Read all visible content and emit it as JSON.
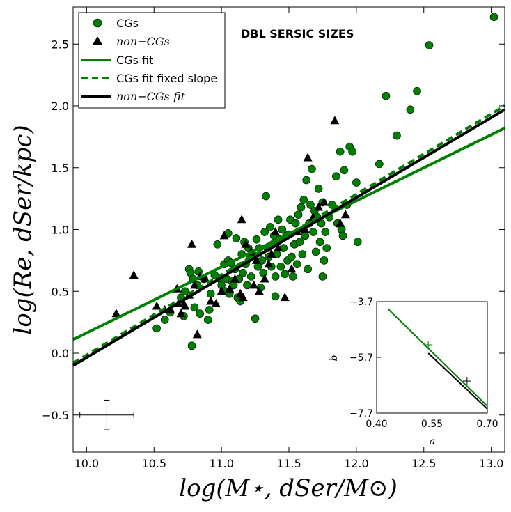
{
  "chart_data": {
    "type": "scatter",
    "title": "DBL SERSIC  SIZES",
    "xlabel": "log(M⋆, dSer/M⊙)",
    "ylabel": "log(Re, dSer/kpc)",
    "xlim": [
      9.9,
      13.1
    ],
    "ylim": [
      -0.8,
      2.8
    ],
    "xticks": [
      10.0,
      10.5,
      11.0,
      11.5,
      12.0,
      12.5,
      13.0
    ],
    "xtick_labels": [
      "10.0",
      "10.5",
      "11.0",
      "11.5",
      "12.0",
      "12.5",
      "13.0"
    ],
    "yticks": [
      -0.5,
      0.0,
      0.5,
      1.0,
      1.5,
      2.0,
      2.5
    ],
    "ytick_labels": [
      "−0.5",
      "0.0",
      "0.5",
      "1.0",
      "1.5",
      "2.0",
      "2.5"
    ],
    "legend_position": "top-left",
    "colors": {
      "cgs": "#008000",
      "noncgs": "#000000"
    },
    "legend": [
      {
        "label": "CGs",
        "marker": "circle",
        "color": "#008000"
      },
      {
        "label": "non−CGs",
        "marker": "triangle",
        "color": "#000000",
        "italic_part": "non"
      },
      {
        "label": "CGs fit",
        "line": "solid",
        "color": "#008000"
      },
      {
        "label": "CGs fit fixed slope",
        "line": "dashed",
        "color": "#008000"
      },
      {
        "label": "non−CGs fit",
        "line": "solid",
        "color": "#000000",
        "italic_part": "non"
      }
    ],
    "series": [
      {
        "name": "CGs",
        "marker": "circle",
        "points": [
          [
            10.52,
            0.2
          ],
          [
            10.58,
            0.27
          ],
          [
            10.62,
            0.33
          ],
          [
            10.7,
            0.45
          ],
          [
            10.72,
            0.3
          ],
          [
            10.73,
            0.5
          ],
          [
            10.76,
            0.68
          ],
          [
            10.77,
            0.65
          ],
          [
            10.78,
            0.06
          ],
          [
            10.79,
            0.6
          ],
          [
            10.8,
            0.37
          ],
          [
            10.82,
            0.55
          ],
          [
            10.83,
            0.66
          ],
          [
            10.84,
            0.32
          ],
          [
            10.87,
            0.6
          ],
          [
            10.9,
            0.27
          ],
          [
            10.91,
            0.35
          ],
          [
            10.92,
            0.48
          ],
          [
            10.95,
            0.63
          ],
          [
            10.97,
            0.88
          ],
          [
            10.99,
            0.6
          ],
          [
            11.0,
            0.55
          ],
          [
            11.02,
            0.72
          ],
          [
            11.03,
            0.5
          ],
          [
            11.04,
            0.6
          ],
          [
            11.05,
            0.75
          ],
          [
            11.05,
            0.97
          ],
          [
            11.06,
            0.48
          ],
          [
            11.07,
            0.73
          ],
          [
            11.08,
            0.58
          ],
          [
            11.09,
            0.55
          ],
          [
            11.1,
            0.68
          ],
          [
            11.11,
            0.93
          ],
          [
            11.12,
            0.45
          ],
          [
            11.13,
            0.6
          ],
          [
            11.14,
            0.42
          ],
          [
            11.15,
            0.8
          ],
          [
            11.16,
            0.65
          ],
          [
            11.17,
            0.9
          ],
          [
            11.18,
            0.72
          ],
          [
            11.19,
            0.55
          ],
          [
            11.2,
            0.85
          ],
          [
            11.21,
            0.78
          ],
          [
            11.22,
            0.62
          ],
          [
            11.23,
            0.8
          ],
          [
            11.25,
            0.28
          ],
          [
            11.26,
            0.92
          ],
          [
            11.27,
            0.7
          ],
          [
            11.28,
            0.85
          ],
          [
            11.29,
            0.53
          ],
          [
            11.3,
            0.75
          ],
          [
            11.31,
            0.65
          ],
          [
            11.32,
            0.98
          ],
          [
            11.33,
            1.27
          ],
          [
            11.34,
            0.85
          ],
          [
            11.35,
            0.78
          ],
          [
            11.36,
            1.02
          ],
          [
            11.37,
            0.7
          ],
          [
            11.38,
            0.88
          ],
          [
            11.39,
            0.95
          ],
          [
            11.4,
            0.62
          ],
          [
            11.4,
            0.46
          ],
          [
            11.41,
            0.8
          ],
          [
            11.42,
            1.08
          ],
          [
            11.43,
            0.92
          ],
          [
            11.44,
            0.7
          ],
          [
            11.45,
            1.0
          ],
          [
            11.46,
            0.85
          ],
          [
            11.47,
            0.64
          ],
          [
            11.48,
            0.95
          ],
          [
            11.49,
            0.75
          ],
          [
            11.5,
            0.96
          ],
          [
            11.51,
            1.08
          ],
          [
            11.52,
            0.78
          ],
          [
            11.53,
            0.62
          ],
          [
            11.54,
            0.88
          ],
          [
            11.55,
            1.05
          ],
          [
            11.56,
            0.72
          ],
          [
            11.57,
            1.12
          ],
          [
            11.58,
            0.9
          ],
          [
            11.59,
            1.18
          ],
          [
            11.6,
            0.8
          ],
          [
            11.61,
            1.24
          ],
          [
            11.62,
            0.95
          ],
          [
            11.63,
            1.4
          ],
          [
            11.64,
            0.68
          ],
          [
            11.65,
            1.05
          ],
          [
            11.66,
            1.2
          ],
          [
            11.67,
            1.49
          ],
          [
            11.68,
            0.98
          ],
          [
            11.69,
            1.15
          ],
          [
            11.7,
            0.82
          ],
          [
            11.71,
            1.1
          ],
          [
            11.72,
            1.33
          ],
          [
            11.73,
            0.9
          ],
          [
            11.74,
            1.05
          ],
          [
            11.75,
            0.62
          ],
          [
            11.75,
            1.22
          ],
          [
            11.76,
            0.75
          ],
          [
            11.77,
            0.98
          ],
          [
            11.78,
            0.85
          ],
          [
            11.8,
            1.1
          ],
          [
            11.82,
            1.2
          ],
          [
            11.85,
            1.43
          ],
          [
            11.86,
            1.05
          ],
          [
            11.88,
            1.63
          ],
          [
            11.89,
            1.0
          ],
          [
            11.9,
            0.95
          ],
          [
            11.91,
            1.48
          ],
          [
            11.93,
            1.2
          ],
          [
            11.95,
            1.67
          ],
          [
            11.97,
            1.63
          ],
          [
            12.0,
            1.38
          ],
          [
            12.01,
            0.9
          ],
          [
            12.17,
            1.53
          ],
          [
            12.22,
            2.08
          ],
          [
            12.3,
            1.76
          ],
          [
            12.4,
            1.97
          ],
          [
            12.45,
            2.12
          ],
          [
            12.54,
            2.49
          ],
          [
            13.02,
            2.72
          ]
        ]
      },
      {
        "name": "non−CGs",
        "marker": "triangle",
        "points": [
          [
            10.22,
            0.32
          ],
          [
            10.35,
            0.63
          ],
          [
            10.52,
            0.38
          ],
          [
            10.58,
            0.35
          ],
          [
            10.62,
            0.35
          ],
          [
            10.67,
            0.52
          ],
          [
            10.68,
            0.4
          ],
          [
            10.7,
            0.32
          ],
          [
            10.72,
            0.4
          ],
          [
            10.73,
            0.38
          ],
          [
            10.76,
            0.47
          ],
          [
            10.78,
            0.88
          ],
          [
            10.8,
            0.55
          ],
          [
            10.82,
            0.15
          ],
          [
            10.84,
            0.62
          ],
          [
            10.88,
            0.6
          ],
          [
            10.92,
            0.42
          ],
          [
            10.96,
            0.4
          ],
          [
            11.0,
            0.5
          ],
          [
            11.02,
            0.95
          ],
          [
            11.06,
            0.52
          ],
          [
            11.1,
            0.6
          ],
          [
            11.14,
            0.48
          ],
          [
            11.15,
            1.08
          ],
          [
            11.16,
            0.45
          ],
          [
            11.18,
            0.88
          ],
          [
            11.22,
            0.82
          ],
          [
            11.24,
            0.55
          ],
          [
            11.26,
            0.75
          ],
          [
            11.28,
            0.5
          ],
          [
            11.32,
            0.6
          ],
          [
            11.35,
            0.72
          ],
          [
            11.37,
            0.8
          ],
          [
            11.4,
            0.98
          ],
          [
            11.42,
            0.85
          ],
          [
            11.47,
            0.45
          ],
          [
            11.52,
            0.68
          ],
          [
            11.56,
            0.98
          ],
          [
            11.62,
            1.0
          ],
          [
            11.64,
            1.58
          ],
          [
            11.68,
            1.1
          ],
          [
            11.72,
            1.18
          ],
          [
            11.76,
            1.22
          ],
          [
            11.84,
            1.88
          ],
          [
            11.88,
            1.05
          ],
          [
            11.92,
            1.12
          ]
        ]
      }
    ],
    "fits": [
      {
        "name": "CGs fit",
        "style": "solid",
        "color": "#008000",
        "x": [
          9.9,
          13.1
        ],
        "y": [
          0.11,
          1.82
        ]
      },
      {
        "name": "CGs fit fixed slope",
        "style": "dashed",
        "color": "#008000",
        "x": [
          9.9,
          13.1
        ],
        "y": [
          -0.08,
          2.0
        ]
      },
      {
        "name": "non−CGs fit",
        "style": "solid",
        "color": "#000000",
        "x": [
          9.9,
          13.1
        ],
        "y": [
          -0.1,
          1.97
        ]
      }
    ],
    "error_bar": {
      "x": 10.15,
      "y": -0.5,
      "xerr_low": 0.2,
      "xerr_high": 0.2,
      "yerr_low": 0.12,
      "yerr_high": 0.12
    },
    "inset": {
      "xlabel": "a",
      "ylabel": "b",
      "xlim": [
        0.4,
        0.7
      ],
      "ylim": [
        -7.7,
        -3.7
      ],
      "xticks": [
        0.4,
        0.55,
        0.7
      ],
      "xtick_labels": [
        "0.40",
        "0.55",
        "0.70"
      ],
      "yticks": [
        -3.7,
        -5.7,
        -7.7
      ],
      "ytick_labels": [
        "−3.7",
        "−5.7",
        "−7.7"
      ],
      "lines": [
        {
          "name": "CGs",
          "color": "#008000",
          "x": [
            0.43,
            0.7
          ],
          "y": [
            -3.95,
            -7.45
          ]
        },
        {
          "name": "non-CGs",
          "color": "#000000",
          "x": [
            0.54,
            0.7
          ],
          "y": [
            -5.55,
            -7.55
          ]
        }
      ],
      "markers": [
        {
          "name": "CGs",
          "color": "#008000",
          "x": 0.54,
          "y": -5.25
        },
        {
          "name": "non-CGs",
          "color": "#000000",
          "x": 0.645,
          "y": -6.55
        }
      ]
    }
  }
}
